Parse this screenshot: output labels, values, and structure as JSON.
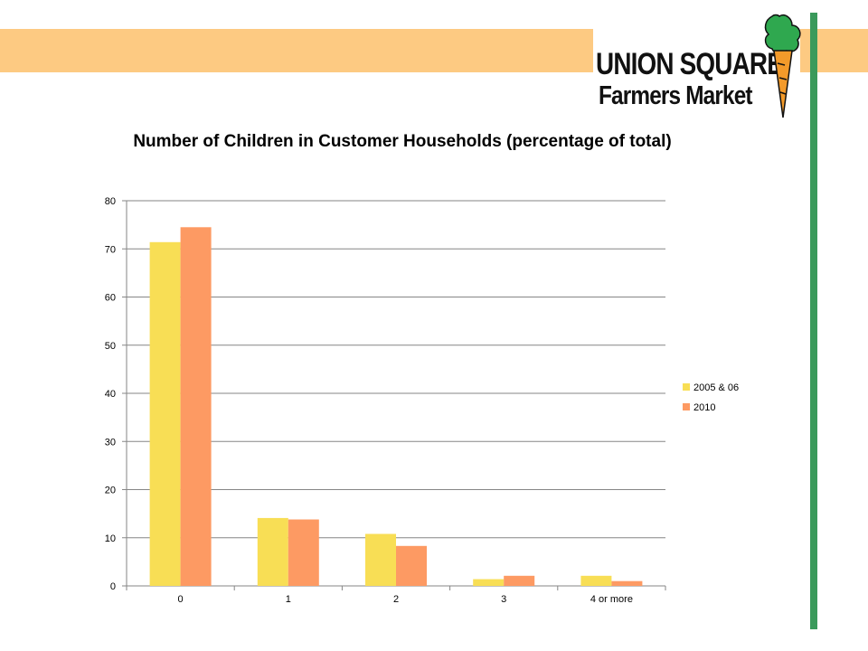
{
  "logo": {
    "line1": "UNION SQUARE",
    "line2": "Farmers Market",
    "icon": "carrot-icon"
  },
  "colors": {
    "band": "#fdca82",
    "accent_green": "#3a9a5b",
    "series_2005": "#f8de55",
    "series_2010": "#fd9a63"
  },
  "chart_data": {
    "type": "bar",
    "title": "Number of Children in Customer Households (percentage of total)",
    "categories": [
      "0",
      "1",
      "2",
      "3",
      "4 or more"
    ],
    "series": [
      {
        "name": "2005 & 06",
        "values": [
          71.4,
          14.1,
          10.8,
          1.4,
          2.1
        ],
        "color": "#f8de55"
      },
      {
        "name": "2010",
        "values": [
          74.5,
          13.8,
          8.3,
          2.1,
          1.0
        ],
        "color": "#fd9a63"
      }
    ],
    "ylim": [
      0,
      80
    ],
    "yticks": [
      0,
      10,
      20,
      30,
      40,
      50,
      60,
      70,
      80
    ],
    "grid": true,
    "legend": "right"
  }
}
